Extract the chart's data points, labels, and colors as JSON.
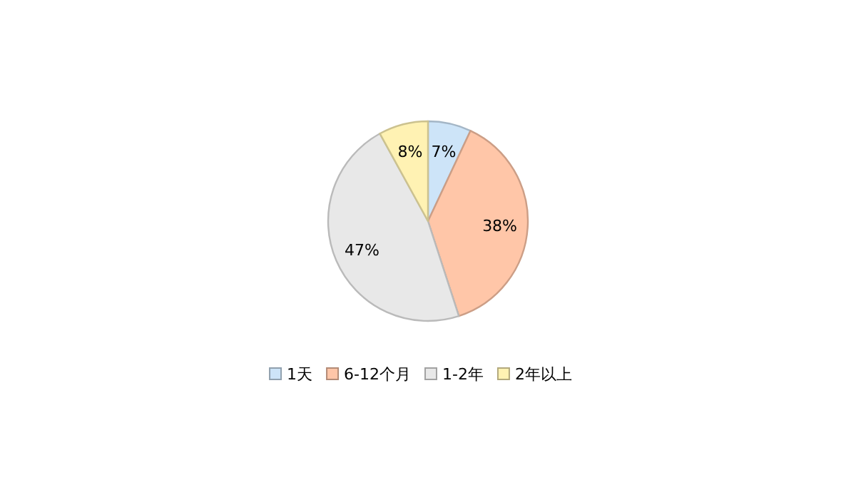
{
  "chart_data": {
    "type": "pie",
    "categories": [
      "1天",
      "6-12个月",
      "1-2年",
      "2年以上"
    ],
    "values": [
      7,
      38,
      47,
      8
    ],
    "colors": [
      "#cde4f8",
      "#ffc6a8",
      "#e8e8e8",
      "#fff2b3"
    ],
    "value_labels": [
      "7%",
      "38%",
      "47%",
      "8%"
    ],
    "legend": "bottom"
  }
}
